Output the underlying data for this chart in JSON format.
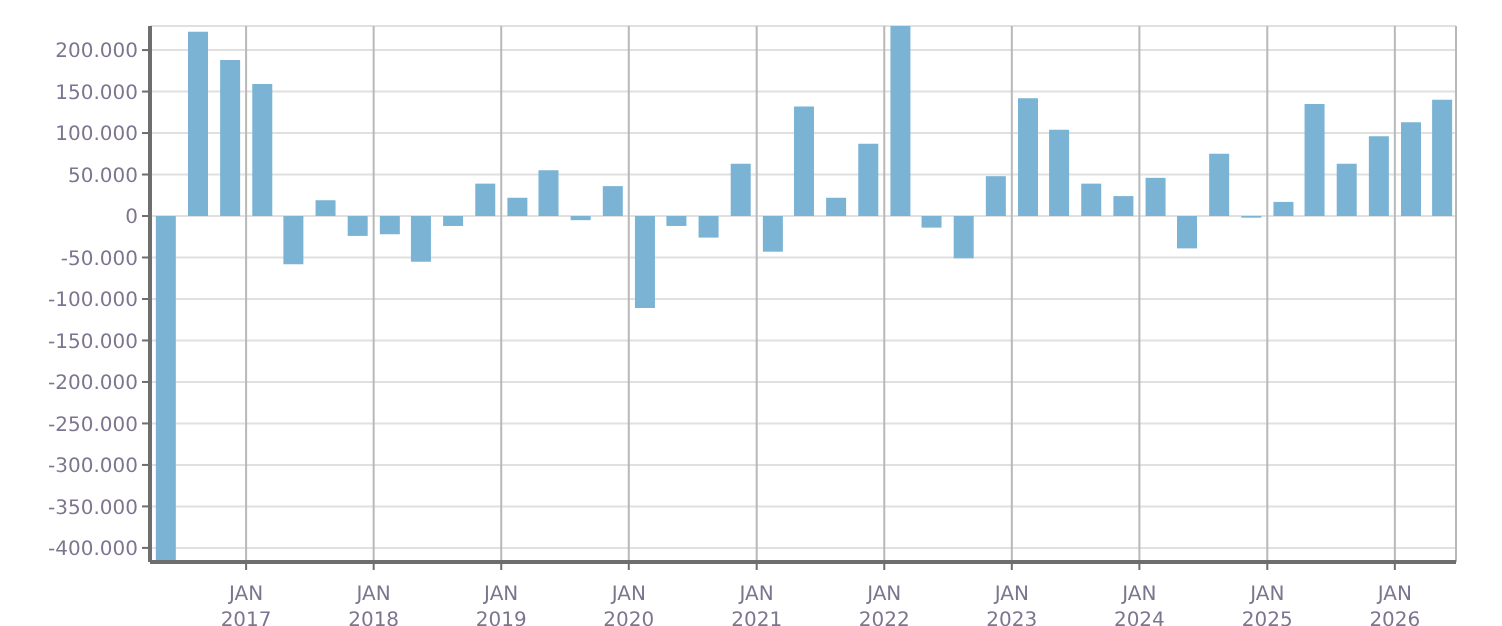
{
  "chart_data": {
    "type": "bar",
    "color": "#7ab3d4",
    "x": [
      "2016-05-15",
      "2016-08-15",
      "2016-11-15",
      "2017-02-15",
      "2017-05-15",
      "2017-08-15",
      "2017-11-15",
      "2018-02-15",
      "2018-05-15",
      "2018-08-15",
      "2018-11-15",
      "2019-02-15",
      "2019-05-15",
      "2019-08-15",
      "2019-11-15",
      "2020-02-15",
      "2020-05-15",
      "2020-08-15",
      "2020-11-15",
      "2021-02-15",
      "2021-05-15",
      "2021-08-15",
      "2021-11-15",
      "2022-02-15",
      "2022-05-15",
      "2022-08-15",
      "2022-11-15",
      "2023-02-15",
      "2023-05-15",
      "2023-08-15",
      "2023-11-15",
      "2024-02-15",
      "2024-05-15",
      "2024-08-15",
      "2024-11-15",
      "2025-02-15",
      "2025-05-15",
      "2025-08-15",
      "2025-11-15",
      "2026-02-15",
      "2026-05-15"
    ],
    "values": [
      -417000,
      222000,
      188000,
      159000,
      -58000,
      19000,
      -24000,
      -22000,
      -55000,
      -12000,
      39000,
      22000,
      55000,
      -5000,
      36000,
      -111000,
      -12000,
      -26000,
      63000,
      -43000,
      132000,
      22000,
      87000,
      229000,
      -14000,
      -51000,
      48000,
      142000,
      104000,
      39000,
      24000,
      46000,
      -39000,
      75000,
      -2000,
      17000,
      135000,
      63000,
      96000,
      113000,
      140000
    ],
    "xlim": [
      "2016-04-01",
      "2026-06-25"
    ],
    "xticks": [
      {
        "value": "2017-01-01",
        "label": "JAN\n2017"
      },
      {
        "value": "2018-01-01",
        "label": "JAN\n2018"
      },
      {
        "value": "2019-01-01",
        "label": "JAN\n2019"
      },
      {
        "value": "2020-01-01",
        "label": "JAN\n2020"
      },
      {
        "value": "2021-01-01",
        "label": "JAN\n2021"
      },
      {
        "value": "2022-01-01",
        "label": "JAN\n2022"
      },
      {
        "value": "2023-01-01",
        "label": "JAN\n2023"
      },
      {
        "value": "2024-01-01",
        "label": "JAN\n2024"
      },
      {
        "value": "2025-01-01",
        "label": "JAN\n2025"
      },
      {
        "value": "2026-01-01",
        "label": "JAN\n2026"
      }
    ],
    "ylim": [
      -417000,
      229000
    ],
    "yticks": [
      {
        "value": -400000,
        "label": "-400.000"
      },
      {
        "value": -350000,
        "label": "-350.000"
      },
      {
        "value": -300000,
        "label": "-300.000"
      },
      {
        "value": -250000,
        "label": "-250.000"
      },
      {
        "value": -200000,
        "label": "-200.000"
      },
      {
        "value": -150000,
        "label": "-150.000"
      },
      {
        "value": -100000,
        "label": "-100.000"
      },
      {
        "value": -50000,
        "label": "-50.000"
      },
      {
        "value": 0,
        "label": "0"
      },
      {
        "value": 50000,
        "label": "50.000"
      },
      {
        "value": 100000,
        "label": "100.000"
      },
      {
        "value": 150000,
        "label": "150.000"
      },
      {
        "value": 200000,
        "label": "200.000"
      }
    ],
    "grid": true
  }
}
